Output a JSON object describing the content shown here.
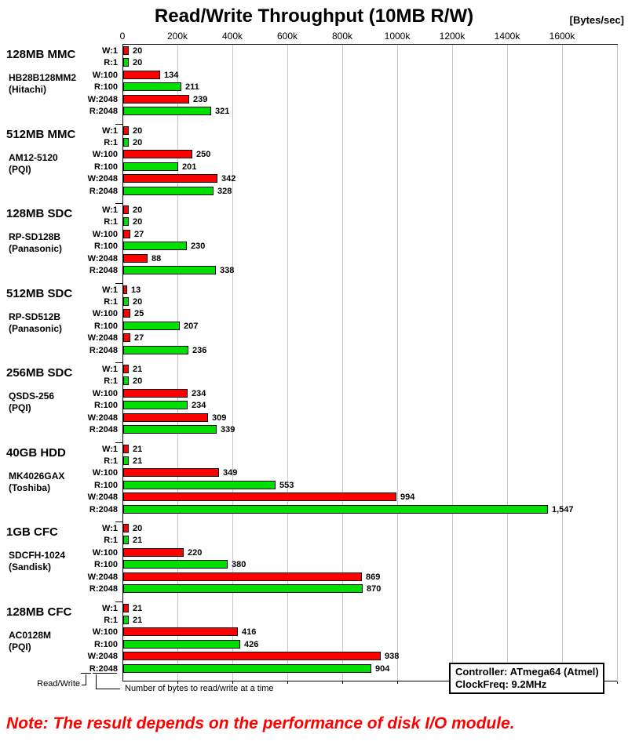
{
  "title": "Read/Write Throughput (10MB R/W)",
  "unit_label": "[Bytes/sec]",
  "note": "Note: The result depends on the performance of disk I/O module.",
  "info_box": {
    "controller_line": "Controller: ATmega64 (Atmel)",
    "clock_line": "ClockFreq: 9.2MHz"
  },
  "legend": {
    "read_write_label": "Read/Write",
    "bytes_label": "Number of bytes to read/write at a time"
  },
  "chart_data": {
    "type": "bar",
    "orientation": "horizontal",
    "title": "Read/Write Throughput (10MB R/W)",
    "unit": "Bytes/sec",
    "values_unit": "kBytes/sec",
    "x_axis": {
      "tick_labels": [
        "0",
        "200k",
        "400k",
        "600k",
        "800k",
        "1000k",
        "1200k",
        "1400k",
        "1600k"
      ],
      "tick_step_bytes_per_sec": 200000,
      "plot_max_bytes_per_sec": 1800000,
      "grid": true,
      "position": "top"
    },
    "bar_row_labels": [
      "W:1",
      "R:1",
      "W:100",
      "R:100",
      "W:2048",
      "R:2048"
    ],
    "series_colors": {
      "write": "#ff0000",
      "read": "#00e000"
    },
    "groups": [
      {
        "size": "128MB MMC",
        "model": "HB28B128MM2",
        "vendor": "(Hitachi)",
        "values": [
          20,
          20,
          134,
          211,
          239,
          321
        ],
        "value_labels": [
          "20",
          "20",
          "134",
          "211",
          "239",
          "321"
        ]
      },
      {
        "size": "512MB MMC",
        "model": "AM12-5120",
        "vendor": "(PQI)",
        "values": [
          20,
          20,
          250,
          201,
          342,
          328
        ],
        "value_labels": [
          "20",
          "20",
          "250",
          "201",
          "342",
          "328"
        ]
      },
      {
        "size": "128MB SDC",
        "model": "RP-SD128B",
        "vendor": "(Panasonic)",
        "values": [
          20,
          20,
          27,
          230,
          88,
          338
        ],
        "value_labels": [
          "20",
          "20",
          "27",
          "230",
          "88",
          "338"
        ]
      },
      {
        "size": "512MB SDC",
        "model": "RP-SD512B",
        "vendor": "(Panasonic)",
        "values": [
          13,
          20,
          25,
          207,
          27,
          236
        ],
        "value_labels": [
          "13",
          "20",
          "25",
          "207",
          "27",
          "236"
        ]
      },
      {
        "size": "256MB SDC",
        "model": "QSDS-256",
        "vendor": "(PQI)",
        "values": [
          21,
          20,
          234,
          234,
          309,
          339
        ],
        "value_labels": [
          "21",
          "20",
          "234",
          "234",
          "309",
          "339"
        ]
      },
      {
        "size": "40GB HDD",
        "model": "MK4026GAX",
        "vendor": "(Toshiba)",
        "values": [
          21,
          21,
          349,
          553,
          994,
          1547
        ],
        "value_labels": [
          "21",
          "21",
          "349",
          "553",
          "994",
          "1,547"
        ]
      },
      {
        "size": "1GB CFC",
        "model": "SDCFH-1024",
        "vendor": "(Sandisk)",
        "values": [
          20,
          21,
          220,
          380,
          869,
          870
        ],
        "value_labels": [
          "20",
          "21",
          "220",
          "380",
          "869",
          "870"
        ]
      },
      {
        "size": "128MB CFC",
        "model": "AC0128M",
        "vendor": "(PQI)",
        "values": [
          21,
          21,
          416,
          426,
          938,
          904
        ],
        "value_labels": [
          "21",
          "21",
          "416",
          "426",
          "938",
          "904"
        ]
      }
    ]
  }
}
